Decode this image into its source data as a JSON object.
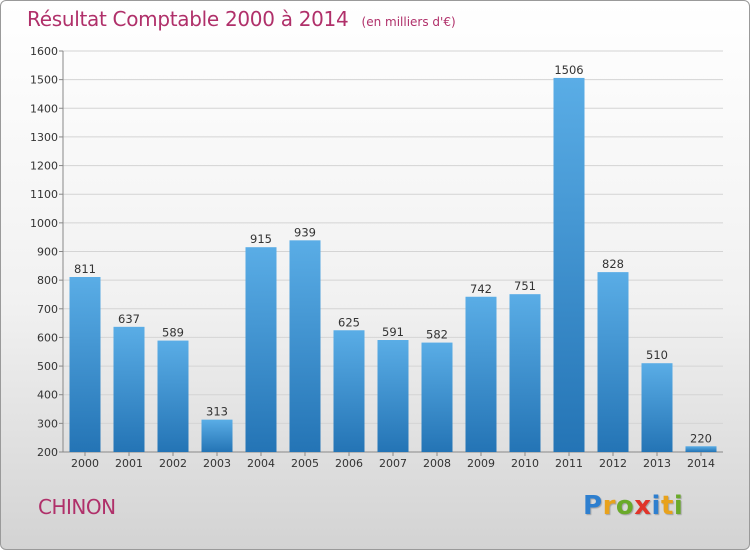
{
  "header": {
    "title": "Résultat Comptable 2000 à 2014",
    "subtitle": "(en milliers d'€)"
  },
  "footer": {
    "commune": "CHINON",
    "brand": {
      "letters": [
        "P",
        "r",
        "o",
        "x",
        "i",
        "t",
        "i"
      ],
      "colors": [
        "#2e7fcf",
        "#e8a21c",
        "#6aaa2a",
        "#e0342a",
        "#2e7fcf",
        "#e8a21c",
        "#6aaa2a"
      ]
    }
  },
  "chart_data": {
    "type": "bar",
    "title": "Résultat Comptable 2000 à 2014",
    "subtitle": "(en milliers d'€)",
    "xlabel": "",
    "ylabel": "",
    "categories": [
      "2000",
      "2001",
      "2002",
      "2003",
      "2004",
      "2005",
      "2006",
      "2007",
      "2008",
      "2009",
      "2010",
      "2011",
      "2012",
      "2013",
      "2014"
    ],
    "values": [
      811,
      637,
      589,
      313,
      915,
      939,
      625,
      591,
      582,
      742,
      751,
      1506,
      828,
      510,
      220
    ],
    "ylim": [
      200,
      1600
    ],
    "yticks": [
      200,
      300,
      400,
      500,
      600,
      700,
      800,
      900,
      1000,
      1100,
      1200,
      1300,
      1400,
      1500,
      1600
    ],
    "grid": true,
    "legend": "none",
    "colors": {
      "bar_light": "#5aade6",
      "bar_dark": "#2474b5",
      "grid": "#d4d4d4",
      "title": "#b0306a"
    }
  }
}
